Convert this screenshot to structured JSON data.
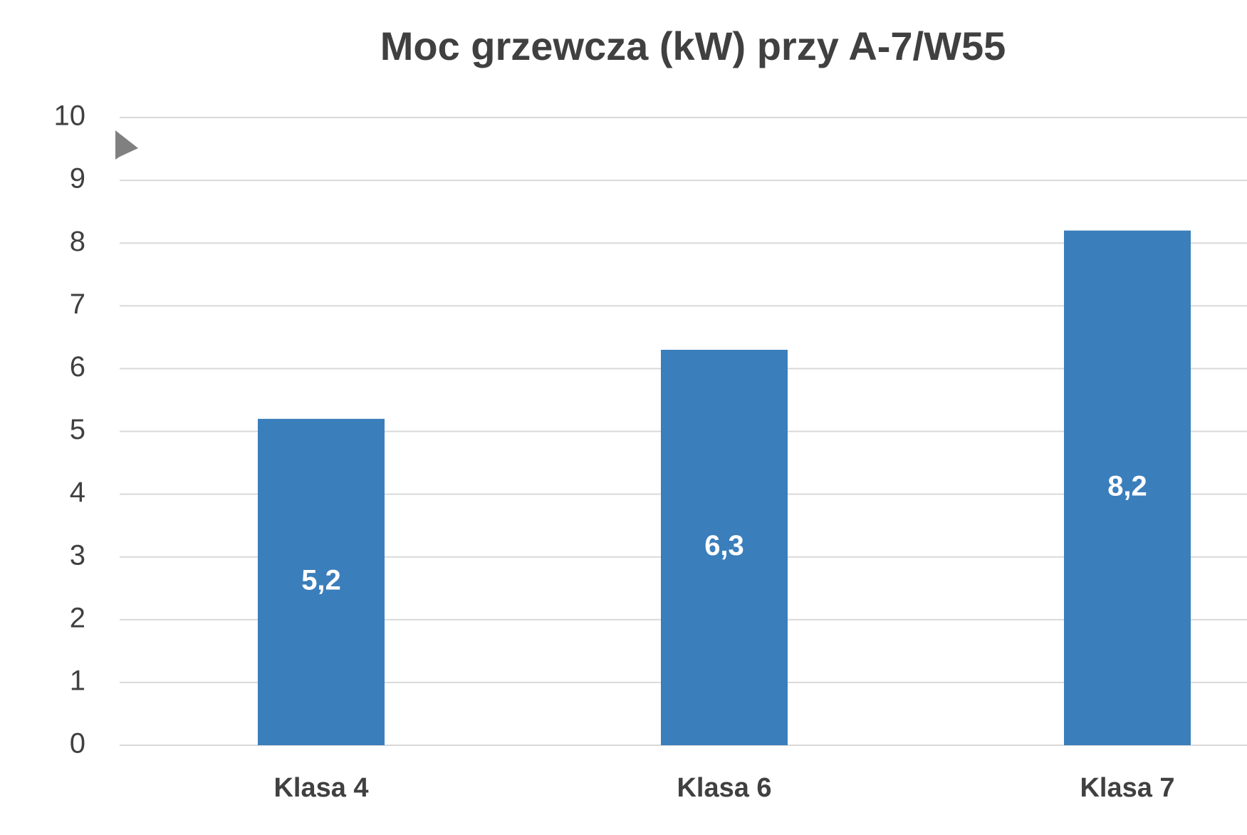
{
  "chart_data": {
    "type": "bar",
    "title": "Moc grzewcza (kW) przy A-7/W55",
    "categories": [
      "Klasa 4",
      "Klasa 6",
      "Klasa 7"
    ],
    "values": [
      5.2,
      6.3,
      8.2
    ],
    "value_labels": [
      "5,2",
      "6,3",
      "8,2"
    ],
    "color": "#3a7ebb",
    "ylim": [
      0,
      10
    ],
    "yticks": [
      0,
      1,
      2,
      3,
      4,
      5,
      6,
      7,
      8,
      9,
      10
    ],
    "grid": true
  }
}
